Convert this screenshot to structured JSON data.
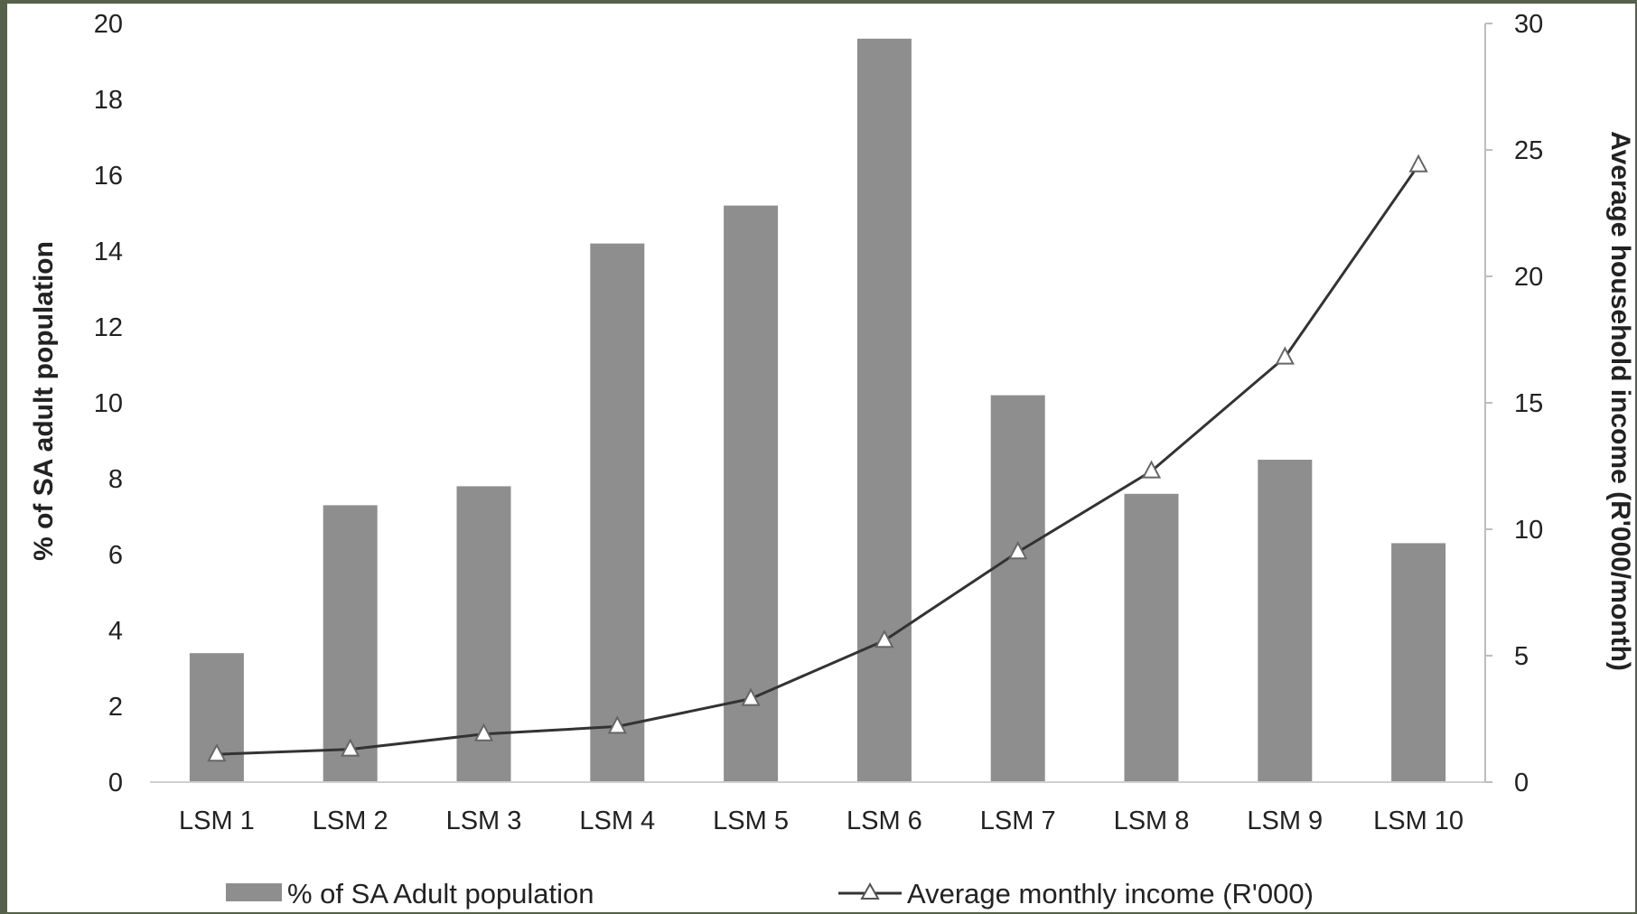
{
  "chart_data": {
    "type": "bar",
    "categories": [
      "LSM 1",
      "LSM 2",
      "LSM 3",
      "LSM 4",
      "LSM 5",
      "LSM 6",
      "LSM 7",
      "LSM 8",
      "LSM 9",
      "LSM 10"
    ],
    "series": [
      {
        "name": "% of SA Adult population",
        "type": "bar",
        "axis": "left",
        "color": "#8e8e8e",
        "values": [
          3.4,
          7.3,
          7.8,
          14.2,
          15.2,
          19.6,
          10.2,
          7.6,
          8.5,
          6.3
        ]
      },
      {
        "name": "Average monthly income (R'000)",
        "type": "line",
        "axis": "right",
        "color": "#333333",
        "marker": "triangle",
        "values": [
          1.1,
          1.3,
          1.9,
          2.2,
          3.3,
          5.6,
          9.1,
          12.3,
          16.8,
          24.4
        ]
      }
    ],
    "ylabel": "% of SA adult population",
    "y2label": "Average household income (R'000/month)",
    "ylim": [
      0,
      20
    ],
    "yticks": [
      "0",
      "2",
      "4",
      "6",
      "8",
      "10",
      "12",
      "14",
      "16",
      "18",
      "20"
    ],
    "y2lim": [
      0,
      30
    ],
    "y2ticks": [
      "0",
      "5",
      "10",
      "15",
      "20",
      "25",
      "30"
    ],
    "legend_position": "bottom",
    "grid": false
  }
}
